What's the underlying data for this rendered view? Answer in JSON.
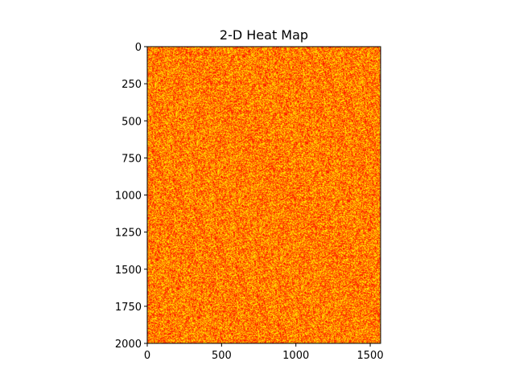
{
  "chart_data": {
    "type": "heatmap",
    "title": "2-D Heat Map",
    "xlabel": "",
    "ylabel": "",
    "xlim": [
      0,
      1570
    ],
    "ylim": [
      2000,
      0
    ],
    "x_ticks": [
      0,
      500,
      1000,
      1500
    ],
    "y_ticks": [
      0,
      250,
      500,
      750,
      1000,
      1250,
      1500,
      1750,
      2000
    ],
    "x_tick_labels": [
      "0",
      "500",
      "1000",
      "1500"
    ],
    "y_tick_labels": [
      "0",
      "250",
      "500",
      "750",
      "1000",
      "1250",
      "1500",
      "1750",
      "2000"
    ],
    "colormap": "autumn",
    "colormap_colors": [
      "#ff0000",
      "#ff8000",
      "#ffff00"
    ],
    "value_range": [
      0,
      1
    ],
    "distribution": "uniform random noise",
    "grid": false,
    "colorbar": false
  }
}
